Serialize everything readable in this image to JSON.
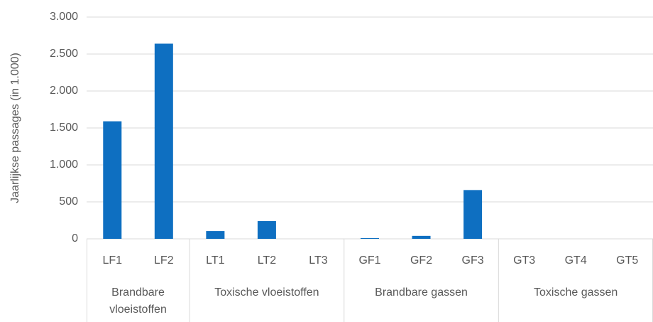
{
  "chart_data": {
    "type": "bar",
    "y_label": "Jaarlijkse passages (in 1.000)",
    "categories": [
      "LF1",
      "LF2",
      "LT1",
      "LT2",
      "LT3",
      "GF1",
      "GF2",
      "GF3",
      "GT3",
      "GT4",
      "GT5"
    ],
    "groups": [
      {
        "name": "Brandbare vloeistoffen",
        "size": 2
      },
      {
        "name": "Toxische vloeistoffen",
        "size": 3
      },
      {
        "name": "Brandbare gassen",
        "size": 3
      },
      {
        "name": "Toxische gassen",
        "size": 3
      }
    ],
    "values": [
      1590,
      2640,
      105,
      240,
      0,
      10,
      40,
      660,
      0,
      0,
      0
    ],
    "color": "#0e6fc1",
    "ylim": [
      0,
      3000
    ],
    "yticks": [
      0,
      500,
      {
        "value": 1000,
        "label": "1.000"
      },
      {
        "value": 1500,
        "label": "1.500"
      },
      {
        "value": 2000,
        "label": "2.000"
      },
      {
        "value": 2500,
        "label": "2.500"
      },
      {
        "value": 3000,
        "label": "3.000"
      }
    ],
    "grid": true
  }
}
